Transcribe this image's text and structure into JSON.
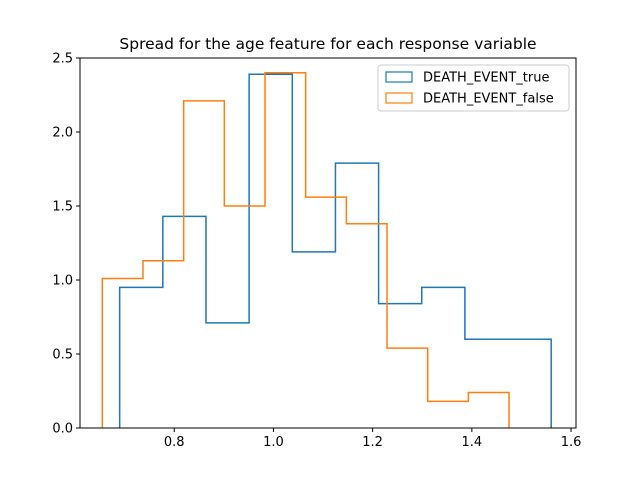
{
  "chart_data": {
    "type": "histogram",
    "title": "Spread for the age feature for each response variable",
    "xlabel": "",
    "ylabel": "",
    "xlim": [
      0.61,
      1.61
    ],
    "ylim": [
      0,
      2.5
    ],
    "xticks": [
      0.8,
      1.0,
      1.2,
      1.4,
      1.6
    ],
    "xtick_labels": [
      "0.8",
      "1.0",
      "1.2",
      "1.4",
      "1.6"
    ],
    "yticks": [
      0.0,
      0.5,
      1.0,
      1.5,
      2.0,
      2.5
    ],
    "ytick_labels": [
      "0.0",
      "0.5",
      "1.0",
      "1.5",
      "2.0",
      "2.5"
    ],
    "grid": false,
    "legend_position": "upper-right",
    "series": [
      {
        "name": "DEATH_EVENT_true",
        "color": "#1f77b4",
        "histtype": "step",
        "bin_edges": [
          0.69,
          0.777,
          0.864,
          0.951,
          1.038,
          1.125,
          1.212,
          1.299,
          1.386,
          1.473,
          1.56
        ],
        "values": [
          0.95,
          1.43,
          0.71,
          2.39,
          1.19,
          1.79,
          0.84,
          0.95,
          0.6,
          0.6
        ]
      },
      {
        "name": "DEATH_EVENT_false",
        "color": "#ff7f0e",
        "histtype": "step",
        "bin_edges": [
          0.655,
          0.737,
          0.819,
          0.901,
          0.983,
          1.065,
          1.147,
          1.229,
          1.311,
          1.393,
          1.475
        ],
        "values": [
          1.01,
          1.13,
          2.21,
          1.5,
          2.4,
          1.56,
          1.38,
          0.54,
          0.18,
          0.24
        ]
      }
    ]
  }
}
